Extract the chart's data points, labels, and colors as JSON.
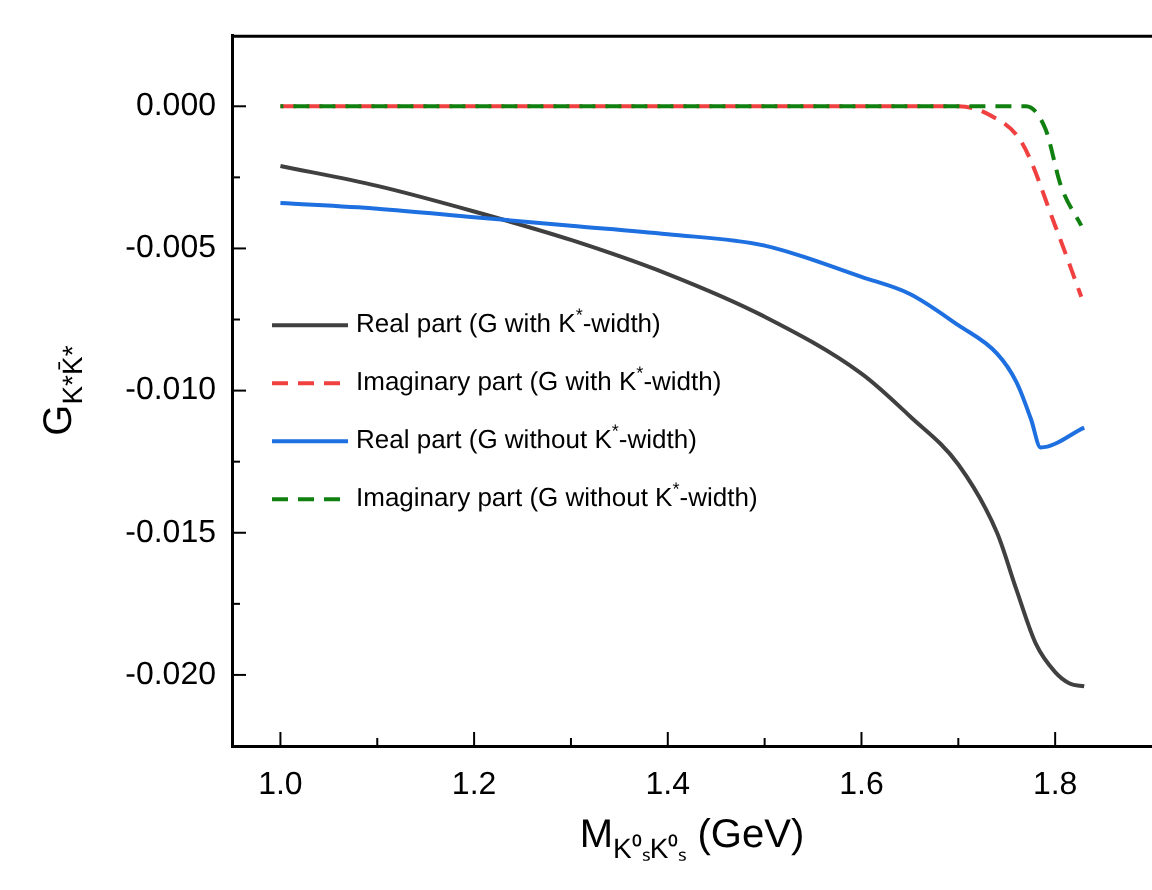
{
  "chart_data": {
    "type": "line",
    "xlabel": "M$_{K⁰ₛK⁰ₛ}$ (GeV)",
    "ylabel": "G$_{K*K̄*}$",
    "xlim": [
      0.95,
      1.9
    ],
    "ylim": [
      -0.0225,
      0.0025
    ],
    "xticks": [
      {
        "value": 1.0,
        "label": "1.0"
      },
      {
        "value": 1.1,
        "label": null
      },
      1.2,
      {
        "value": 1.3,
        "label": null
      },
      1.4,
      {
        "value": 1.5,
        "label": null
      },
      1.6,
      {
        "value": 1.7,
        "label": null
      },
      1.8
    ],
    "yticks": [
      {
        "value": -0.02,
        "label": "-0.020"
      },
      {
        "value": -0.0175,
        "label": null
      },
      {
        "value": -0.015,
        "label": "-0.015"
      },
      {
        "value": -0.0125,
        "label": null
      },
      {
        "value": -0.01,
        "label": "-0.010"
      },
      {
        "value": -0.0075,
        "label": null
      },
      {
        "value": -0.005,
        "label": "-0.005"
      },
      {
        "value": -0.0025,
        "label": null
      },
      {
        "value": 0,
        "label": "0.000"
      }
    ],
    "grid": false,
    "legend": "left",
    "marker": "none",
    "series": [
      {
        "name": "Real part (G with K$^{*}$-width)",
        "color": "#404040",
        "line_style": "solid",
        "x": [
          1.0,
          1.1,
          1.2,
          1.3,
          1.4,
          1.5,
          1.6,
          1.65,
          1.7,
          1.74,
          1.76,
          1.78,
          1.8,
          1.815,
          1.83
        ],
        "values": [
          -0.0021,
          -0.0028,
          -0.0037,
          -0.0047,
          -0.0059,
          -0.0074,
          -0.0094,
          -0.0109,
          -0.0126,
          -0.015,
          -0.017,
          -0.0189,
          -0.0199,
          -0.0203,
          -0.0204
        ]
      },
      {
        "name": "Imaginary part (G with K$^{*}$-width)",
        "color": "#f04040",
        "line_style": "dashed",
        "x": [
          1.0,
          1.2,
          1.4,
          1.6,
          1.7,
          1.732,
          1.766,
          1.8,
          1.827
        ],
        "values": [
          0,
          0,
          0,
          0,
          0,
          -0.0003,
          -0.0013,
          -0.0042,
          -0.0067
        ]
      },
      {
        "name": "Real part (G without K$^{*}$-width)",
        "color": "#1e6fe0",
        "line_style": "solid",
        "x": [
          1.0,
          1.1,
          1.2,
          1.3,
          1.4,
          1.5,
          1.6,
          1.65,
          1.7,
          1.74,
          1.76,
          1.775,
          1.785,
          1.83
        ],
        "values": [
          -0.0034,
          -0.0036,
          -0.0039,
          -0.0042,
          -0.0045,
          -0.0049,
          -0.006,
          -0.0066,
          -0.0077,
          -0.0087,
          -0.0097,
          -0.011,
          -0.012,
          -0.0113
        ]
      },
      {
        "name": "Imaginary part (G without K$^{*}$-width)",
        "color": "#108010",
        "line_style": "dashed",
        "x": [
          1.0,
          1.2,
          1.4,
          1.6,
          1.77,
          1.79,
          1.806,
          1.827
        ],
        "values": [
          0,
          0,
          0,
          0,
          0,
          -0.0008,
          -0.0028,
          -0.0042
        ]
      }
    ]
  }
}
